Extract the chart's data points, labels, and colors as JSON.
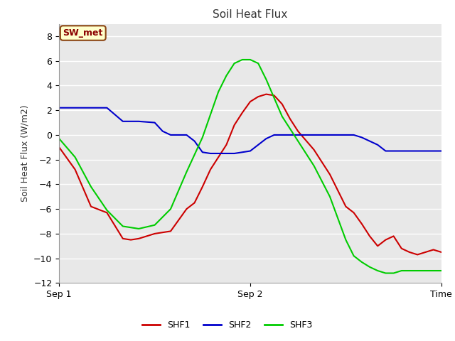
{
  "title": "Soil Heat Flux",
  "ylabel": "Soil Heat Flux (W/m2)",
  "xlabel": "Time",
  "annotation": "SW_met",
  "fig_bg_color": "#ffffff",
  "plot_bg_color": "#e8e8e8",
  "grid_color": "#ffffff",
  "ylim": [
    -12,
    9
  ],
  "yticks": [
    -12,
    -10,
    -8,
    -6,
    -4,
    -2,
    0,
    2,
    4,
    6,
    8
  ],
  "xlim": [
    0,
    48
  ],
  "xtick_positions": [
    0,
    24,
    48
  ],
  "xtick_labels": [
    "Sep 1",
    "Sep 2",
    "Time"
  ],
  "legend_labels": [
    "SHF1",
    "SHF2",
    "SHF3"
  ],
  "legend_colors": [
    "#cc0000",
    "#0000cc",
    "#00cc00"
  ],
  "shf1_x": [
    0,
    2,
    4,
    6,
    8,
    9,
    10,
    12,
    14,
    16,
    17,
    18,
    19,
    20,
    21,
    22,
    23,
    24,
    25,
    26,
    27,
    28,
    29,
    30,
    32,
    34,
    35,
    36,
    37,
    38,
    39,
    40,
    41,
    42,
    43,
    44,
    45,
    46,
    47,
    48
  ],
  "shf1_y": [
    -1.0,
    -2.8,
    -5.8,
    -6.3,
    -8.4,
    -8.5,
    -8.4,
    -8.0,
    -7.8,
    -6.0,
    -5.5,
    -4.2,
    -2.8,
    -1.8,
    -0.8,
    0.8,
    1.8,
    2.7,
    3.1,
    3.3,
    3.2,
    2.5,
    1.3,
    0.3,
    -1.2,
    -3.2,
    -4.5,
    -5.8,
    -6.3,
    -7.2,
    -8.2,
    -9.0,
    -8.5,
    -8.2,
    -9.2,
    -9.5,
    -9.7,
    -9.5,
    -9.3,
    -9.5
  ],
  "shf2_x": [
    0,
    3,
    6,
    8,
    9,
    10,
    12,
    13,
    14,
    16,
    17,
    18,
    19,
    20,
    21,
    22,
    23,
    24,
    25,
    26,
    27,
    28,
    30,
    32,
    34,
    35,
    36,
    37,
    38,
    39,
    40,
    41,
    42,
    43,
    44,
    45,
    46,
    47,
    48
  ],
  "shf2_y": [
    2.2,
    2.2,
    2.2,
    1.1,
    1.1,
    1.1,
    1.0,
    0.3,
    0.0,
    0.0,
    -0.5,
    -1.4,
    -1.5,
    -1.5,
    -1.5,
    -1.5,
    -1.4,
    -1.3,
    -0.8,
    -0.3,
    0.0,
    0.0,
    0.0,
    0.0,
    0.0,
    0.0,
    0.0,
    0.0,
    -0.2,
    -0.5,
    -0.8,
    -1.3,
    -1.3,
    -1.3,
    -1.3,
    -1.3,
    -1.3,
    -1.3,
    -1.3
  ],
  "shf3_x": [
    0,
    2,
    4,
    6,
    8,
    10,
    12,
    14,
    16,
    18,
    20,
    21,
    22,
    23,
    24,
    25,
    26,
    27,
    28,
    30,
    32,
    34,
    36,
    37,
    38,
    39,
    40,
    41,
    42,
    43,
    44,
    45,
    46,
    47,
    48
  ],
  "shf3_y": [
    -0.3,
    -1.8,
    -4.2,
    -6.1,
    -7.4,
    -7.6,
    -7.3,
    -6.0,
    -3.0,
    -0.2,
    3.5,
    4.8,
    5.8,
    6.1,
    6.1,
    5.8,
    4.5,
    3.0,
    1.5,
    -0.5,
    -2.5,
    -5.0,
    -8.5,
    -9.8,
    -10.3,
    -10.7,
    -11.0,
    -11.2,
    -11.2,
    -11.0,
    -11.0,
    -11.0,
    -11.0,
    -11.0,
    -11.0
  ]
}
